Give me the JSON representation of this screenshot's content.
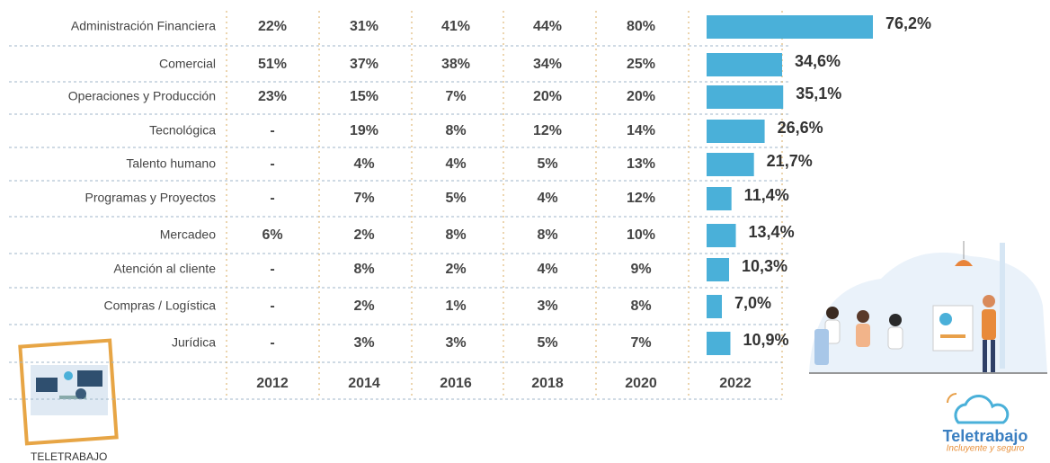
{
  "table": {
    "columns": [
      "2012",
      "2014",
      "2016",
      "2018",
      "2020",
      "2022"
    ],
    "rows": [
      {
        "label": "Administración Financiera",
        "cells": [
          "22%",
          "31%",
          "41%",
          "44%",
          "80%"
        ],
        "bar": 76.2,
        "bar_label": "76,2%"
      },
      {
        "label": "Comercial",
        "cells": [
          "51%",
          "37%",
          "38%",
          "34%",
          "25%"
        ],
        "bar": 34.6,
        "bar_label": "34,6%"
      },
      {
        "label": "Operaciones y Producción",
        "cells": [
          "23%",
          "15%",
          "7%",
          "20%",
          "20%"
        ],
        "bar": 35.1,
        "bar_label": "35,1%"
      },
      {
        "label": "Tecnológica",
        "cells": [
          "-",
          "19%",
          "8%",
          "12%",
          "14%"
        ],
        "bar": 26.6,
        "bar_label": "26,6%"
      },
      {
        "label": "Talento humano",
        "cells": [
          "-",
          "4%",
          "4%",
          "5%",
          "13%"
        ],
        "bar": 21.7,
        "bar_label": "21,7%"
      },
      {
        "label": "Programas y Proyectos",
        "cells": [
          "-",
          "7%",
          "5%",
          "4%",
          "12%"
        ],
        "bar": 11.4,
        "bar_label": "11,4%"
      },
      {
        "label": "Mercadeo",
        "cells": [
          "6%",
          "2%",
          "8%",
          "8%",
          "10%"
        ],
        "bar": 13.4,
        "bar_label": "13,4%"
      },
      {
        "label": "Atención al cliente",
        "cells": [
          "-",
          "8%",
          "2%",
          "4%",
          "9%"
        ],
        "bar": 10.3,
        "bar_label": "10,3%"
      },
      {
        "label": "Compras / Logística",
        "cells": [
          "-",
          "2%",
          "1%",
          "3%",
          "8%"
        ],
        "bar": 7.0,
        "bar_label": "7,0%"
      },
      {
        "label": "Jurídica",
        "cells": [
          "-",
          "3%",
          "3%",
          "5%",
          "7%"
        ],
        "bar": 10.9,
        "bar_label": "10,9%"
      }
    ],
    "bar_color": "#4ab0d9"
  },
  "left_caption": "TELETRABAJO",
  "brand": {
    "name": "Teletrabajo",
    "tagline": "Incluyente y seguro"
  }
}
